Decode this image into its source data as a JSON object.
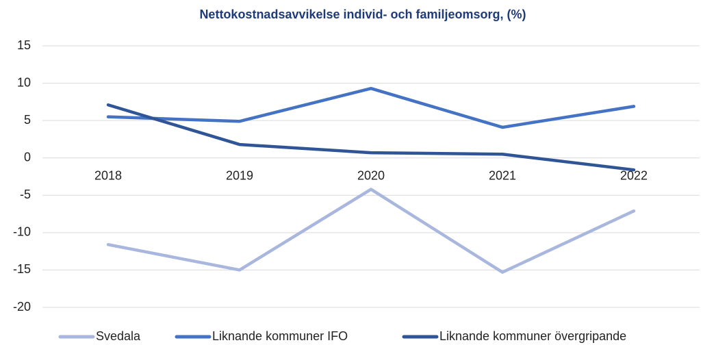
{
  "chart_data": {
    "type": "line",
    "title": "Nettokostnadsavvikelse individ- och familjeomsorg, (%)",
    "categories": [
      "2018",
      "2019",
      "2020",
      "2021",
      "2022"
    ],
    "series": [
      {
        "name": "Svedala",
        "color": "#a9b7de",
        "values": [
          -11.6,
          -15.0,
          -4.2,
          -15.3,
          -7.1
        ]
      },
      {
        "name": "Liknande kommuner IFO",
        "color": "#4472c4",
        "values": [
          5.5,
          4.9,
          9.3,
          4.1,
          6.9
        ]
      },
      {
        "name": "Liknande kommuner övergripande",
        "color": "#2f5597",
        "values": [
          7.1,
          1.8,
          0.7,
          0.5,
          -1.6
        ]
      }
    ],
    "ylim": [
      -20,
      15
    ],
    "yticks": [
      -20,
      -15,
      -10,
      -5,
      0,
      5,
      10,
      15
    ],
    "grid": true,
    "legend": "bottom"
  }
}
